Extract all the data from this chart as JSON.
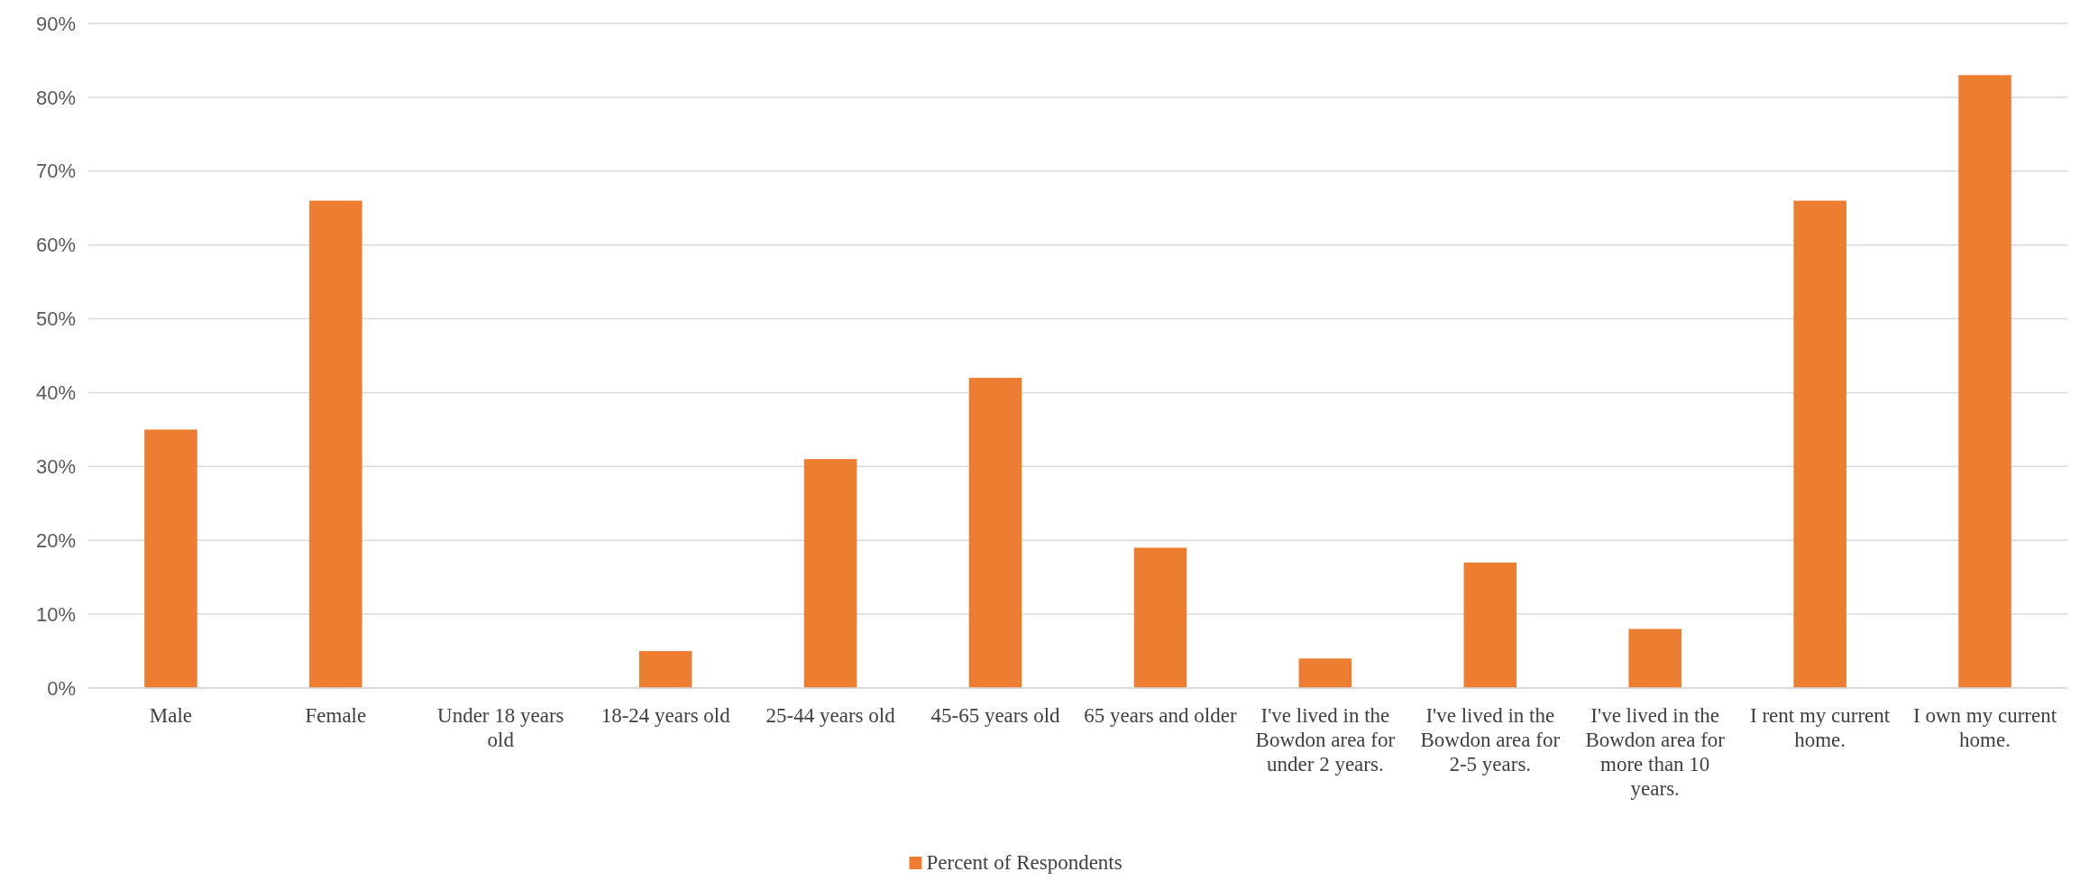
{
  "chart_data": {
    "type": "bar",
    "categories": [
      "Male",
      "Female",
      "Under 18 years old",
      "18-24 years old",
      "25-44 years old",
      "45-65 years old",
      "65 years and older",
      "I've lived in the Bowdon area for under 2 years.",
      "I've lived in the Bowdon area for 2-5 years.",
      "I've lived in the Bowdon area for more than 10 years.",
      "I rent my current home.",
      "I own my current home."
    ],
    "series": [
      {
        "name": "Percent of Respondents",
        "color": "#ed7d31",
        "values": [
          35,
          66,
          0,
          5,
          31,
          42,
          19,
          4,
          17,
          8,
          66,
          83
        ]
      }
    ],
    "ylim": [
      0,
      90
    ],
    "yticks": [
      {
        "value": 0,
        "label": "0%"
      },
      {
        "value": 10,
        "label": "10%"
      },
      {
        "value": 20,
        "label": "20%"
      },
      {
        "value": 30,
        "label": "30%"
      },
      {
        "value": 40,
        "label": "40%"
      },
      {
        "value": 50,
        "label": "50%"
      },
      {
        "value": 60,
        "label": "60%"
      },
      {
        "value": 70,
        "label": "70%"
      },
      {
        "value": 80,
        "label": "80%"
      },
      {
        "value": 90,
        "label": "90%"
      }
    ],
    "grid": "y",
    "legend": "bottom"
  }
}
